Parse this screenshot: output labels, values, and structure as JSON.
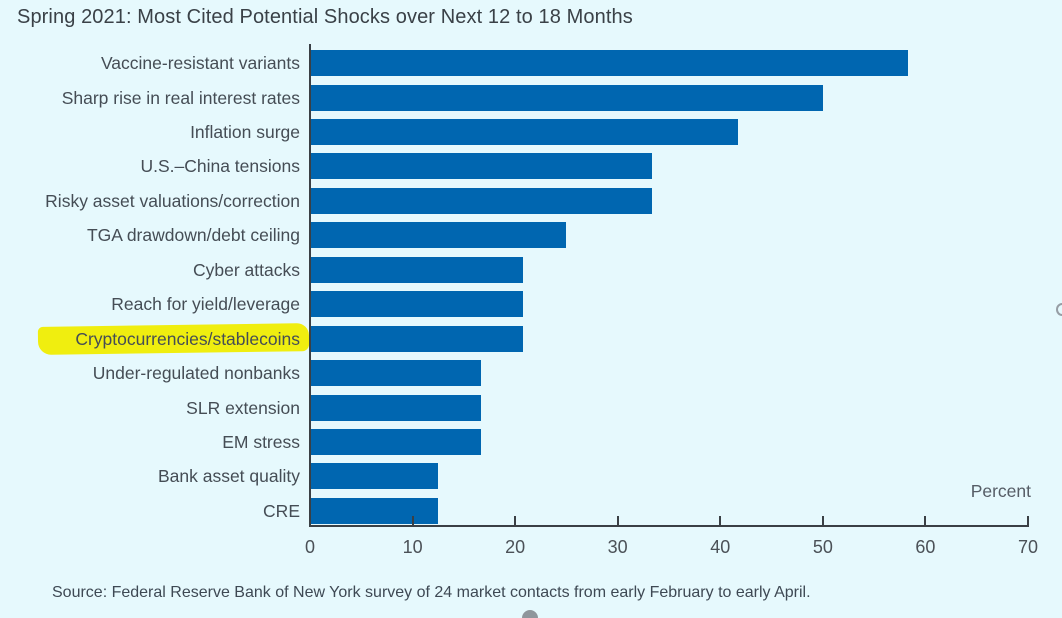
{
  "page": {
    "background": "#e6f9fd",
    "accent_color": "#0066b0",
    "highlight_color": "#f0ee0f"
  },
  "chart_data": {
    "type": "bar",
    "orientation": "horizontal",
    "title": "Spring 2021: Most Cited Potential Shocks over Next 12 to 18 Months",
    "categories": [
      "Vaccine-resistant variants",
      "Sharp rise in real interest rates",
      "Inflation surge",
      "U.S.–China tensions",
      "Risky asset valuations/correction",
      "TGA drawdown/debt ceiling",
      "Cyber attacks",
      "Reach for yield/leverage",
      "Cryptocurrencies/stablecoins",
      "Under-regulated nonbanks",
      "SLR extension",
      "EM stress",
      "Bank asset quality",
      "CRE"
    ],
    "values": [
      58.3,
      50.0,
      41.7,
      33.3,
      33.3,
      25.0,
      20.8,
      20.8,
      20.8,
      16.7,
      16.7,
      16.7,
      12.5,
      12.5
    ],
    "highlighted_category": "Cryptocurrencies/stablecoins",
    "xlabel": "Percent",
    "xlim": [
      0,
      70
    ],
    "xticks": [
      0,
      10,
      20,
      30,
      40,
      50,
      60,
      70
    ],
    "grid": false,
    "legend": false,
    "bar_color": "#0066b0",
    "source": "Source: Federal Reserve Bank of New York survey of 24 market contacts from early February to early April."
  }
}
